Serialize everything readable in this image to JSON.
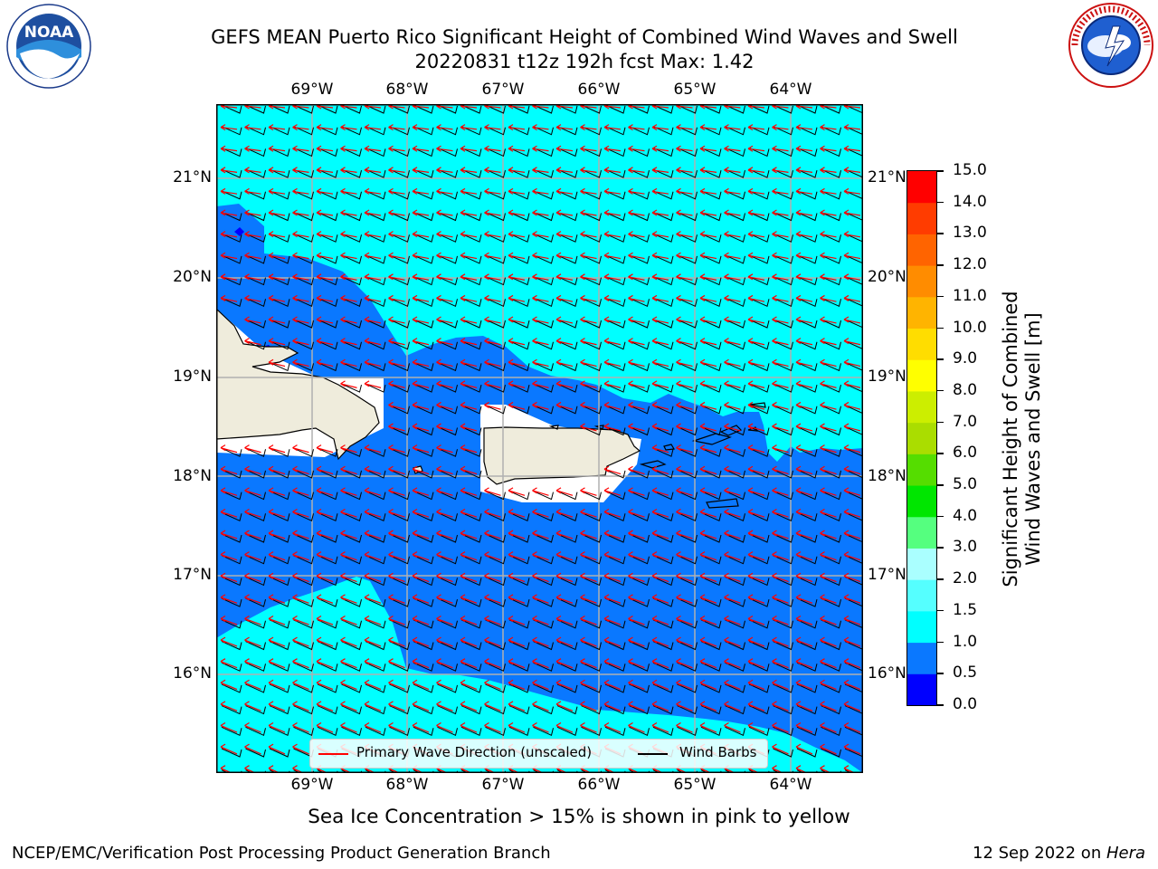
{
  "title": {
    "line1": "GEFS MEAN Puerto Rico Significant Height of Combined Wind Waves and Swell",
    "line2": "20220831 t12z 192h fcst   Max: 1.42"
  },
  "map": {
    "lon_labels": [
      "69°W",
      "68°W",
      "67°W",
      "66°W",
      "65°W",
      "64°W"
    ],
    "lat_labels": [
      "21°N",
      "20°N",
      "19°N",
      "18°N",
      "17°N",
      "16°N"
    ],
    "legend": {
      "wave_label": "Primary Wave Direction (unscaled)",
      "barb_label": "Wind Barbs",
      "wave_color": "#ff0000",
      "barb_color": "#000000"
    },
    "colors": {
      "land": "#efecdc",
      "sea_05_10": "#0a78ff",
      "sea_10_15": "#00ffff",
      "sea_00_05": "#0000ff",
      "grid": "#b0b0b0"
    }
  },
  "colorbar": {
    "label_line1": "Significant Height of Combined",
    "label_line2": "Wind Waves and Swell [m]",
    "ticks": [
      "0.0",
      "0.5",
      "1.0",
      "1.5",
      "2.0",
      "3.0",
      "4.0",
      "5.0",
      "6.0",
      "7.0",
      "8.0",
      "9.0",
      "10.0",
      "11.0",
      "12.0",
      "13.0",
      "14.0",
      "15.0"
    ],
    "colors": [
      "#0000ff",
      "#0a78ff",
      "#00ffff",
      "#55ffff",
      "#aaffff",
      "#55ff7f",
      "#00e600",
      "#55dd00",
      "#aadd00",
      "#ccee00",
      "#ffff00",
      "#ffdd00",
      "#ffb400",
      "#ff8c00",
      "#ff6400",
      "#ff3c00",
      "#ff0000"
    ]
  },
  "note": "Sea Ice Concentration > 15% is shown in pink to yellow",
  "footer": {
    "left": "NCEP/EMC/Verification Post Processing Product Generation Branch",
    "right_date": "12 Sep 2022 on ",
    "right_host": "Hera"
  },
  "logos": {
    "noaa": "NOAA",
    "noaa_ring": "NATIONAL OCEANIC AND ATMOSPHERIC ADMINISTRATION · U.S. DEPARTMENT OF COMMERCE",
    "nws_ring": "NATIONAL WEATHER SERVICE"
  }
}
